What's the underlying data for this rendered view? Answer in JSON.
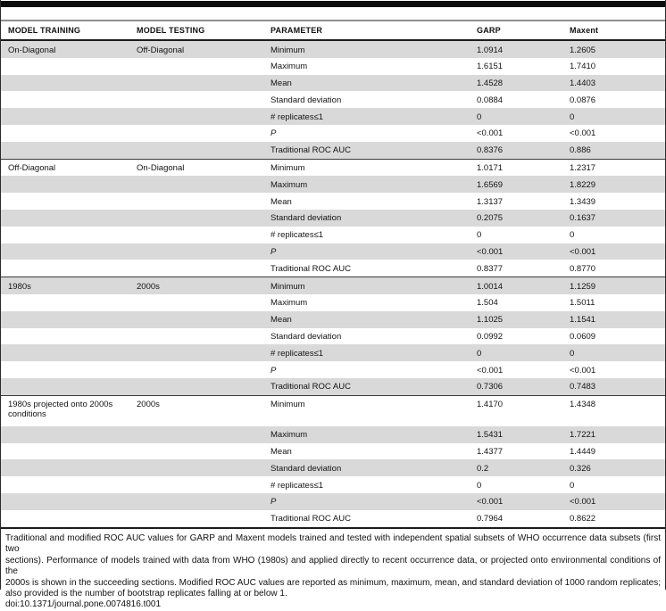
{
  "table": {
    "columns": [
      "MODEL TRAINING",
      "MODEL TESTING",
      "PARAMETER",
      "GARP",
      "Maxent"
    ],
    "sections": [
      {
        "training": "On-Diagonal",
        "testing": "Off-Diagonal",
        "rows": [
          {
            "parameter": "Minimum",
            "garp": "1.0914",
            "maxent": "1.2605"
          },
          {
            "parameter": "Maximum",
            "garp": "1.6151",
            "maxent": "1.7410"
          },
          {
            "parameter": "Mean",
            "garp": "1.4528",
            "maxent": "1.4403"
          },
          {
            "parameter": "Standard deviation",
            "garp": "0.0884",
            "maxent": "0.0876"
          },
          {
            "parameter": "# replicates≤1",
            "garp": "0",
            "maxent": "0"
          },
          {
            "parameter": "P",
            "garp": "<0.001",
            "maxent": "<0.001"
          },
          {
            "parameter": "Traditional ROC AUC",
            "garp": "0.8376",
            "maxent": "0.886"
          }
        ]
      },
      {
        "training": "Off-Diagonal",
        "testing": "On-Diagonal",
        "rows": [
          {
            "parameter": "Minimum",
            "garp": "1.0171",
            "maxent": "1.2317"
          },
          {
            "parameter": "Maximum",
            "garp": "1.6569",
            "maxent": "1.8229"
          },
          {
            "parameter": "Mean",
            "garp": "1.3137",
            "maxent": "1.3439"
          },
          {
            "parameter": "Standard deviation",
            "garp": "0.2075",
            "maxent": "0.1637"
          },
          {
            "parameter": "# replicates≤1",
            "garp": "0",
            "maxent": "0"
          },
          {
            "parameter": "P",
            "garp": "<0.001",
            "maxent": "<0.001"
          },
          {
            "parameter": "Traditional ROC AUC",
            "garp": "0.8377",
            "maxent": "0.8770"
          }
        ]
      },
      {
        "training": "1980s",
        "testing": "2000s",
        "rows": [
          {
            "parameter": "Minimum",
            "garp": "1.0014",
            "maxent": "1.1259"
          },
          {
            "parameter": "Maximum",
            "garp": "1.504",
            "maxent": "1.5011"
          },
          {
            "parameter": "Mean",
            "garp": "1.1025",
            "maxent": "1.1541"
          },
          {
            "parameter": "Standard deviation",
            "garp": "0.0992",
            "maxent": "0.0609"
          },
          {
            "parameter": "# replicates≤1",
            "garp": "0",
            "maxent": "0"
          },
          {
            "parameter": "P",
            "garp": "<0.001",
            "maxent": "<0.001"
          },
          {
            "parameter": "Traditional ROC AUC",
            "garp": "0.7306",
            "maxent": "0.7483"
          }
        ]
      },
      {
        "training": "1980s projected onto 2000s conditions",
        "testing": "2000s",
        "rows": [
          {
            "parameter": "Minimum",
            "garp": "1.4170",
            "maxent": "1.4348"
          },
          {
            "parameter": "Maximum",
            "garp": "1.5431",
            "maxent": "1.7221"
          },
          {
            "parameter": "Mean",
            "garp": "1.4377",
            "maxent": "1.4449"
          },
          {
            "parameter": "Standard deviation",
            "garp": "0.2",
            "maxent": "0.326"
          },
          {
            "parameter": "# replicates≤1",
            "garp": "0",
            "maxent": "0"
          },
          {
            "parameter": "P",
            "garp": "<0.001",
            "maxent": "<0.001"
          },
          {
            "parameter": "Traditional ROC AUC",
            "garp": "0.7964",
            "maxent": "0.8622"
          }
        ]
      }
    ]
  },
  "caption": {
    "lines": [
      "Traditional and modified ROC AUC values for GARP and Maxent models trained and tested with independent spatial subsets of WHO occurrence data subsets (first two",
      "sections). Performance of models trained with data from WHO (1980s) and applied directly to recent occurrence data, or projected onto environmental conditions of the",
      "2000s is shown in the succeeding sections. Modified ROC AUC values are reported as minimum, maximum, mean, and standard deviation of 1000 random replicates;",
      "also provided is the number of bootstrap replicates falling at or below 1."
    ],
    "doi": "doi:10.1371/journal.pone.0074816.t001"
  },
  "colors": {
    "stripe_gray": "#d9d9d9",
    "rule_black": "#1c1c1c",
    "rule_gray": "#8f8f8f"
  }
}
